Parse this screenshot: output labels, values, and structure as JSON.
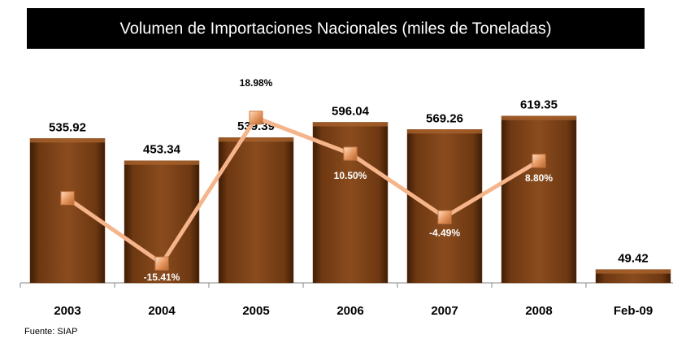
{
  "chart_data": {
    "type": "bar",
    "title": "Volumen de Importaciones Nacionales (miles de Toneladas)",
    "source": "Fuente: SIAP",
    "categories": [
      "2003",
      "2004",
      "2005",
      "2006",
      "2007",
      "2008",
      "Feb-09"
    ],
    "series": [
      {
        "type": "bar",
        "color": "#7b3f12",
        "values": [
          535.92,
          453.34,
          539.39,
          596.04,
          569.26,
          619.35,
          49.42
        ]
      },
      {
        "type": "line",
        "axis": "y2",
        "color": "#f5b48a",
        "values": [
          0,
          -15.41,
          18.98,
          10.5,
          -4.49,
          8.8,
          null
        ],
        "value_labels": [
          null,
          "-15.41%",
          "18.98%",
          "10.50%",
          "-4.49%",
          "8.80%",
          null
        ]
      }
    ],
    "ylim": [
      0,
      700
    ],
    "y2lim": [
      -20,
      24.5
    ]
  }
}
